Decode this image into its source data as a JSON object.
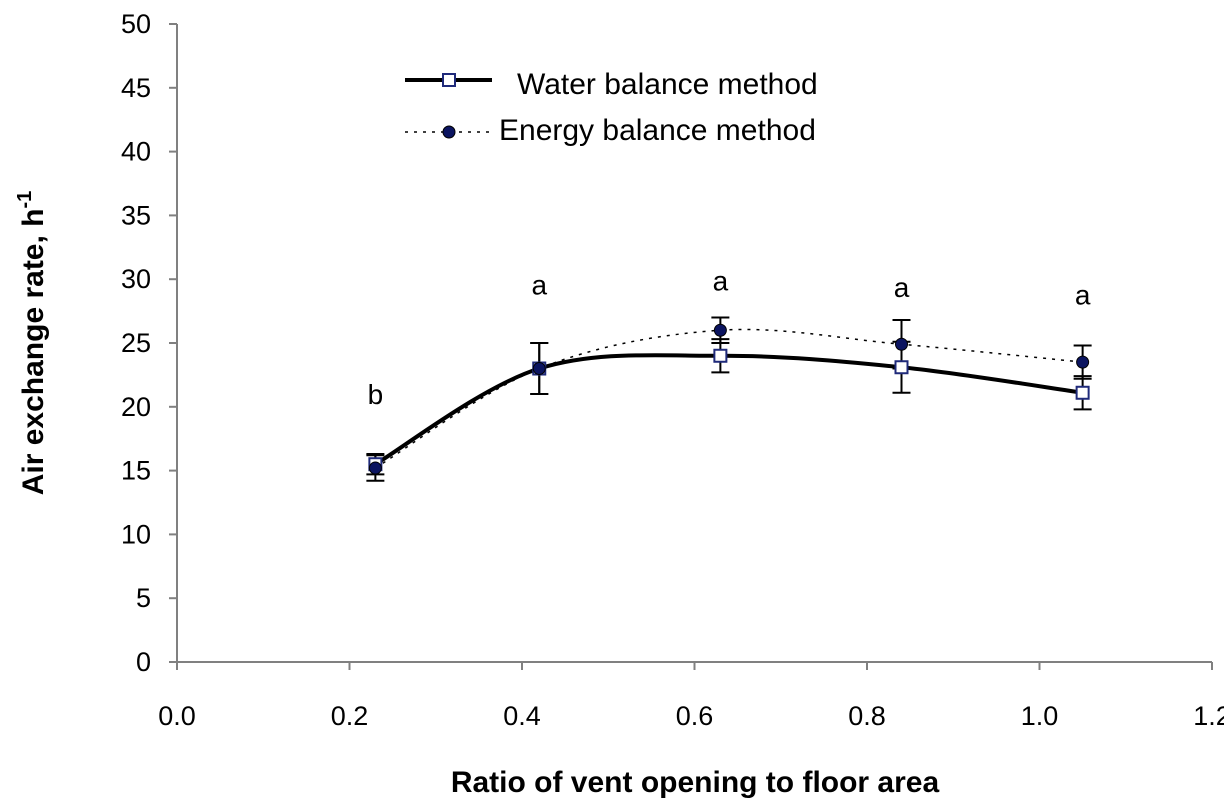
{
  "chart_data": {
    "type": "line",
    "xlabel": "Ratio of vent opening to floor area",
    "ylabel_main": "Air exchange rate, h",
    "ylabel_sup": "-1",
    "xlim": [
      0.0,
      1.2
    ],
    "ylim": [
      0,
      50
    ],
    "x_ticks": [
      "0.0",
      "0.2",
      "0.4",
      "0.6",
      "0.8",
      "1.0",
      "1.2"
    ],
    "y_ticks": [
      "0",
      "5",
      "10",
      "15",
      "20",
      "25",
      "30",
      "35",
      "40",
      "45",
      "50"
    ],
    "grid": false,
    "legend_position": "top-center",
    "series": [
      {
        "name": "Water balance method",
        "style": "solid",
        "marker": "open-square",
        "color": "#000000",
        "marker_color": "#1f2a7a",
        "x": [
          0.23,
          0.42,
          0.63,
          0.84,
          1.05
        ],
        "values": [
          15.5,
          23.0,
          24.0,
          23.1,
          21.1
        ],
        "error": [
          0.8,
          2.0,
          1.3,
          2.0,
          1.3
        ]
      },
      {
        "name": "Energy balance method",
        "style": "dotted",
        "marker": "filled-circle",
        "color": "#000000",
        "marker_color": "#0b1460",
        "x": [
          0.23,
          0.42,
          0.63,
          0.84,
          1.05
        ],
        "values": [
          15.2,
          23.0,
          26.0,
          24.9,
          23.5
        ],
        "error": [
          1.0,
          2.0,
          1.0,
          1.9,
          1.3
        ]
      }
    ],
    "annotations": [
      {
        "text": "b",
        "x": 0.23,
        "y": 21.0
      },
      {
        "text": "a",
        "x": 0.42,
        "y": 29.6
      },
      {
        "text": "a",
        "x": 0.63,
        "y": 29.9
      },
      {
        "text": "a",
        "x": 0.84,
        "y": 29.4
      },
      {
        "text": "a",
        "x": 1.05,
        "y": 28.8
      }
    ]
  }
}
